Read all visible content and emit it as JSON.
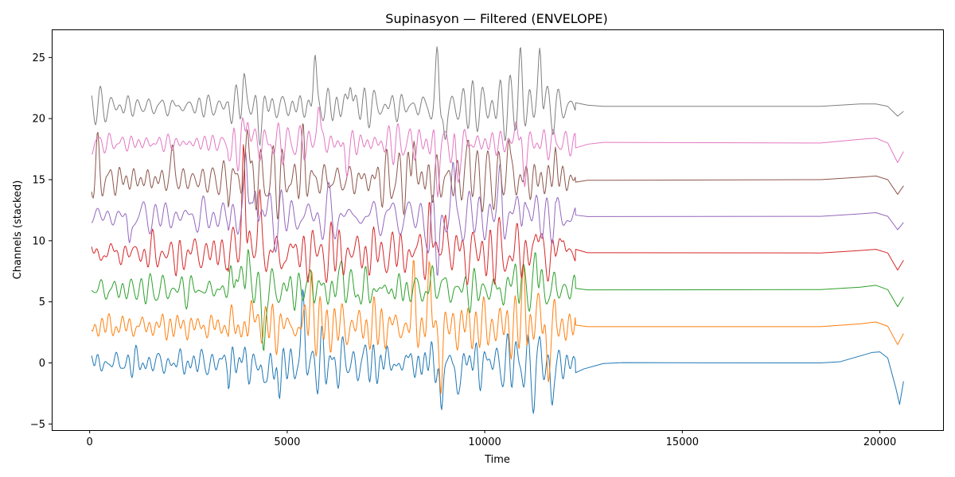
{
  "chart_data": {
    "type": "line",
    "title": "Supinasyon — Filtered (ENVELOPE)",
    "xlabel": "Time",
    "ylabel": "Channels (stacked)",
    "xlim": [
      -960,
      21600
    ],
    "ylim": [
      -5.5,
      27.3
    ],
    "xticks": [
      0,
      5000,
      10000,
      15000,
      20000
    ],
    "yticks": [
      -5,
      0,
      5,
      10,
      15,
      20,
      25
    ],
    "grid": false,
    "legend": "none",
    "x_max": 20600,
    "active_end": 12300,
    "series": [
      {
        "offset": 0,
        "color": "#1f77b4",
        "amplitude": 1.6,
        "spikes": [
          [
            4800,
            -3.0
          ],
          [
            4400,
            -2.8
          ],
          [
            8900,
            -3.7
          ],
          [
            9300,
            -2.5
          ],
          [
            11250,
            -3.7
          ],
          [
            11700,
            -3.7
          ],
          [
            5400,
            4.7
          ],
          [
            11400,
            2.0
          ]
        ],
        "tail": [
          [
            12300,
            -0.8
          ],
          [
            12500,
            -0.5
          ],
          [
            13000,
            -0.05
          ],
          [
            13500,
            0.02
          ],
          [
            18500,
            0.0
          ],
          [
            19000,
            0.1
          ],
          [
            19800,
            0.85
          ],
          [
            20000,
            0.9
          ],
          [
            20200,
            0.4
          ],
          [
            20400,
            -2.0
          ],
          [
            20500,
            -3.4
          ],
          [
            20600,
            -1.5
          ]
        ]
      },
      {
        "offset": 3,
        "color": "#ff7f0e",
        "amplitude": 1.7,
        "spikes": [
          [
            4200,
            5.0
          ],
          [
            5600,
            6.9
          ],
          [
            8200,
            6.7
          ],
          [
            8600,
            7.1
          ],
          [
            8900,
            -1.4
          ],
          [
            11000,
            6.6
          ],
          [
            11400,
            5.0
          ],
          [
            11600,
            -0.7
          ]
        ],
        "tail": [
          [
            12300,
            3.1
          ],
          [
            12600,
            2.97
          ],
          [
            18500,
            2.97
          ],
          [
            19500,
            3.2
          ],
          [
            19900,
            3.35
          ],
          [
            20200,
            3.0
          ],
          [
            20450,
            1.5
          ],
          [
            20600,
            2.4
          ]
        ]
      },
      {
        "offset": 6,
        "color": "#2ca02c",
        "amplitude": 1.6,
        "spikes": [
          [
            3700,
            9.0
          ],
          [
            4000,
            10.0
          ],
          [
            4400,
            1.4
          ],
          [
            5600,
            7.3
          ],
          [
            6400,
            8.7
          ],
          [
            8800,
            7.5
          ],
          [
            10800,
            8.8
          ],
          [
            11300,
            9.2
          ]
        ],
        "tail": [
          [
            12300,
            6.1
          ],
          [
            12600,
            5.98
          ],
          [
            18500,
            6.0
          ],
          [
            19500,
            6.2
          ],
          [
            19900,
            6.35
          ],
          [
            20200,
            6.0
          ],
          [
            20450,
            4.6
          ],
          [
            20600,
            5.4
          ]
        ]
      },
      {
        "offset": 9,
        "color": "#d62728",
        "amplitude": 1.8,
        "spikes": [
          [
            3900,
            19.3
          ],
          [
            4300,
            14.0
          ],
          [
            4700,
            8.5
          ],
          [
            8600,
            12.7
          ],
          [
            9000,
            12.5
          ],
          [
            11300,
            11.2
          ],
          [
            12000,
            11.0
          ],
          [
            2200,
            7.8
          ]
        ],
        "tail": [
          [
            12300,
            9.3
          ],
          [
            12600,
            9.02
          ],
          [
            18500,
            9.0
          ],
          [
            19500,
            9.2
          ],
          [
            19900,
            9.3
          ],
          [
            20200,
            9.0
          ],
          [
            20450,
            7.6
          ],
          [
            20600,
            8.4
          ]
        ]
      },
      {
        "offset": 12,
        "color": "#9467bd",
        "amplitude": 1.7,
        "spikes": [
          [
            3950,
            17.0
          ],
          [
            4200,
            15.5
          ],
          [
            8600,
            9.1
          ],
          [
            8800,
            8.0
          ],
          [
            9200,
            15.0
          ],
          [
            10400,
            15.3
          ],
          [
            11000,
            14.5
          ],
          [
            1000,
            9.7
          ]
        ],
        "tail": [
          [
            12300,
            12.1
          ],
          [
            12600,
            11.98
          ],
          [
            18500,
            12.0
          ],
          [
            19500,
            12.2
          ],
          [
            19900,
            12.3
          ],
          [
            20200,
            12.0
          ],
          [
            20450,
            10.9
          ],
          [
            20600,
            11.5
          ]
        ]
      },
      {
        "offset": 15,
        "color": "#8c564b",
        "amplitude": 1.9,
        "spikes": [
          [
            4000,
            19.3
          ],
          [
            5400,
            18.0
          ],
          [
            8200,
            18.5
          ],
          [
            9600,
            18.0
          ],
          [
            10600,
            18.3
          ],
          [
            11800,
            17.1
          ],
          [
            200,
            17.1
          ],
          [
            2100,
            17.5
          ]
        ],
        "tail": [
          [
            12300,
            14.8
          ],
          [
            12600,
            14.95
          ],
          [
            18500,
            15.0
          ],
          [
            19500,
            15.2
          ],
          [
            19900,
            15.3
          ],
          [
            20200,
            15.0
          ],
          [
            20450,
            13.8
          ],
          [
            20600,
            14.5
          ]
        ]
      },
      {
        "offset": 18,
        "color": "#e377c2",
        "amplitude": 1.6,
        "spikes": [
          [
            3600,
            16.5
          ],
          [
            4000,
            21.0
          ],
          [
            5800,
            21.5
          ],
          [
            6500,
            15.5
          ],
          [
            8800,
            14.5
          ],
          [
            9300,
            14.5
          ],
          [
            10800,
            20.0
          ],
          [
            11000,
            15.0
          ]
        ],
        "tail": [
          [
            12300,
            17.6
          ],
          [
            12600,
            17.9
          ],
          [
            13000,
            18.05
          ],
          [
            18500,
            18.0
          ],
          [
            19500,
            18.3
          ],
          [
            19900,
            18.4
          ],
          [
            20200,
            18.0
          ],
          [
            20450,
            16.4
          ],
          [
            20600,
            17.3
          ]
        ]
      },
      {
        "offset": 21,
        "color": "#7f7f7f",
        "amplitude": 1.7,
        "spikes": [
          [
            5700,
            25.0
          ],
          [
            8800,
            24.7
          ],
          [
            11400,
            26.0
          ],
          [
            10900,
            24.2
          ],
          [
            6600,
            23.5
          ],
          [
            3900,
            23.5
          ],
          [
            4300,
            18.9
          ],
          [
            9000,
            18.2
          ]
        ],
        "tail": [
          [
            12300,
            21.3
          ],
          [
            12600,
            21.1
          ],
          [
            13000,
            21.0
          ],
          [
            18500,
            21.0
          ],
          [
            19500,
            21.2
          ],
          [
            19900,
            21.2
          ],
          [
            20200,
            21.0
          ],
          [
            20450,
            20.2
          ],
          [
            20600,
            20.6
          ]
        ]
      }
    ]
  }
}
